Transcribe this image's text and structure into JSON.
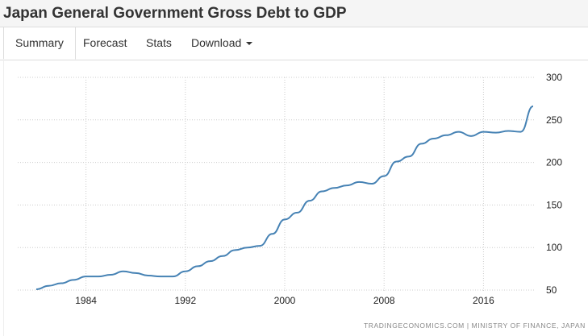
{
  "header": {
    "title": "Japan General Government Gross Debt to GDP"
  },
  "tabs": [
    {
      "label": "Summary"
    },
    {
      "label": "Forecast"
    },
    {
      "label": "Stats"
    },
    {
      "label": "Download"
    }
  ],
  "source": "TRADINGECONOMICS.COM  |  MINISTRY OF FINANCE, JAPAN",
  "colors": {
    "line": "#4682b4",
    "grid": "#ccc"
  },
  "chart_data": {
    "type": "line",
    "title": "Japan General Government Gross Debt to GDP",
    "xlabel": "",
    "ylabel": "",
    "xlim": [
      1980,
      2020
    ],
    "ylim": [
      50,
      300
    ],
    "x_ticks": [
      "1984",
      "1992",
      "2000",
      "2008",
      "2016"
    ],
    "y_ticks": [
      "50",
      "100",
      "150",
      "200",
      "250",
      "300"
    ],
    "grid": true,
    "series": [
      {
        "name": "Gross Debt to GDP (%)",
        "x": [
          1980,
          1981,
          1982,
          1983,
          1984,
          1985,
          1986,
          1987,
          1988,
          1989,
          1990,
          1991,
          1992,
          1993,
          1994,
          1995,
          1996,
          1997,
          1998,
          1999,
          2000,
          2001,
          2002,
          2003,
          2004,
          2005,
          2006,
          2007,
          2008,
          2009,
          2010,
          2011,
          2012,
          2013,
          2014,
          2015,
          2016,
          2017,
          2018,
          2019,
          2020
        ],
        "values": [
          51,
          55,
          58,
          62,
          66,
          66,
          68,
          72,
          70,
          67,
          66,
          66,
          72,
          78,
          84,
          90,
          97,
          100,
          102,
          116,
          133,
          141,
          155,
          166,
          170,
          173,
          177,
          175,
          184,
          201,
          207,
          222,
          228,
          232,
          236,
          231,
          236,
          235,
          237,
          236,
          266
        ]
      }
    ]
  }
}
